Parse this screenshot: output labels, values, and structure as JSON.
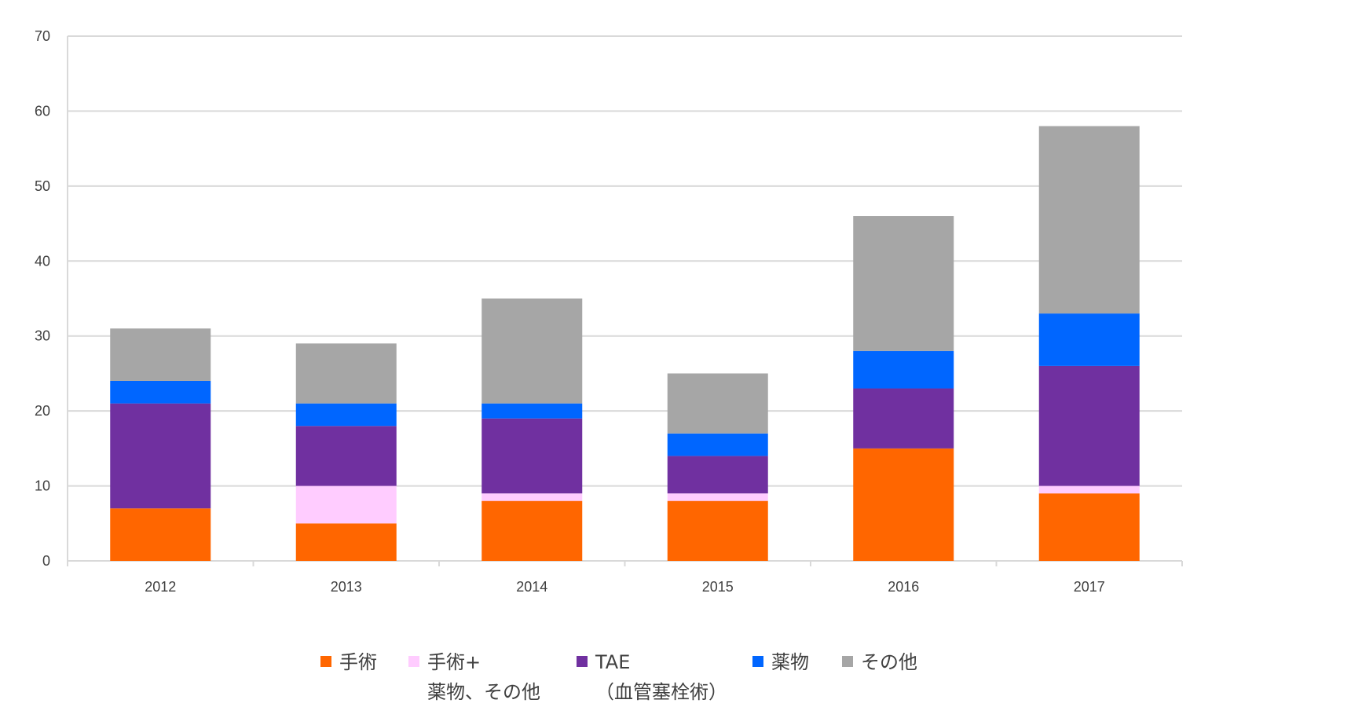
{
  "chart_data": {
    "type": "bar",
    "stacked": true,
    "categories": [
      "2012",
      "2013",
      "2014",
      "2015",
      "2016",
      "2017"
    ],
    "series": [
      {
        "name": "手術",
        "color": "#ff6600",
        "values": [
          7,
          5,
          8,
          8,
          15,
          9
        ]
      },
      {
        "name": "手術+\n薬物、その他",
        "color": "#ffccff",
        "values": [
          0,
          5,
          1,
          1,
          0,
          1
        ]
      },
      {
        "name": "TAE\n（血管塞栓術）",
        "color": "#7030a0",
        "values": [
          14,
          8,
          10,
          5,
          8,
          16
        ]
      },
      {
        "name": "薬物",
        "color": "#0066ff",
        "values": [
          3,
          3,
          2,
          3,
          5,
          7
        ]
      },
      {
        "name": "その他",
        "color": "#a6a6a6",
        "values": [
          7,
          8,
          14,
          8,
          18,
          25
        ]
      }
    ],
    "y_ticks": [
      "0",
      "10",
      "20",
      "30",
      "40",
      "50",
      "60",
      "70"
    ],
    "ylim": [
      0,
      70
    ],
    "grid": true,
    "legend_position": "bottom",
    "title": "",
    "xlabel": "",
    "ylabel": ""
  }
}
